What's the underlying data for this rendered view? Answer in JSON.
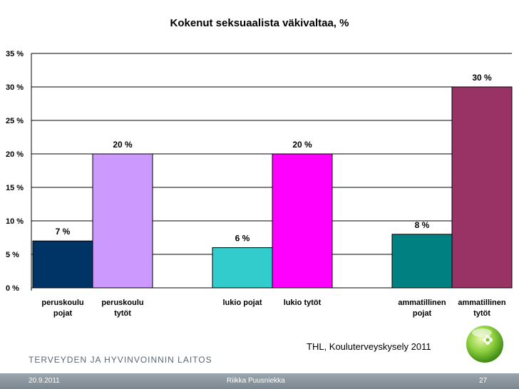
{
  "chart_data": {
    "type": "bar",
    "title": "Kokenut seksuaalista väkivaltaa, %",
    "categories": [
      [
        "peruskoulu",
        "pojat"
      ],
      [
        "peruskoulu",
        "tytöt"
      ],
      null,
      [
        "lukio pojat"
      ],
      [
        "lukio tytöt"
      ],
      null,
      [
        "ammatillinen",
        "pojat"
      ],
      [
        "ammatillinen",
        "tytöt"
      ]
    ],
    "values": [
      7,
      20,
      null,
      6,
      20,
      null,
      8,
      30
    ],
    "value_labels": [
      "7 %",
      "20 %",
      "",
      "6 %",
      "20 %",
      "",
      "8 %",
      "30 %"
    ],
    "colors": [
      "#003366",
      "#cc99ff",
      "",
      "#33cccc",
      "#ff00ff",
      "",
      "#008080",
      "#993366"
    ],
    "ylim": [
      0,
      35
    ],
    "yticks": [
      0,
      5,
      10,
      15,
      20,
      25,
      30,
      35
    ],
    "ytick_labels": [
      "0 %",
      "5 %",
      "10 %",
      "15 %",
      "20 %",
      "25 %",
      "30 %",
      "35 %"
    ],
    "grid": true,
    "xlabel": "",
    "ylabel": ""
  },
  "source": "THL, Kouluterveyskysely 2011",
  "organization": "TERVEYDEN JA HYVINVOINNIN LAITOS",
  "footer": {
    "date": "20.9.2011",
    "author": "Riikka Puusniekka",
    "page": "27"
  }
}
